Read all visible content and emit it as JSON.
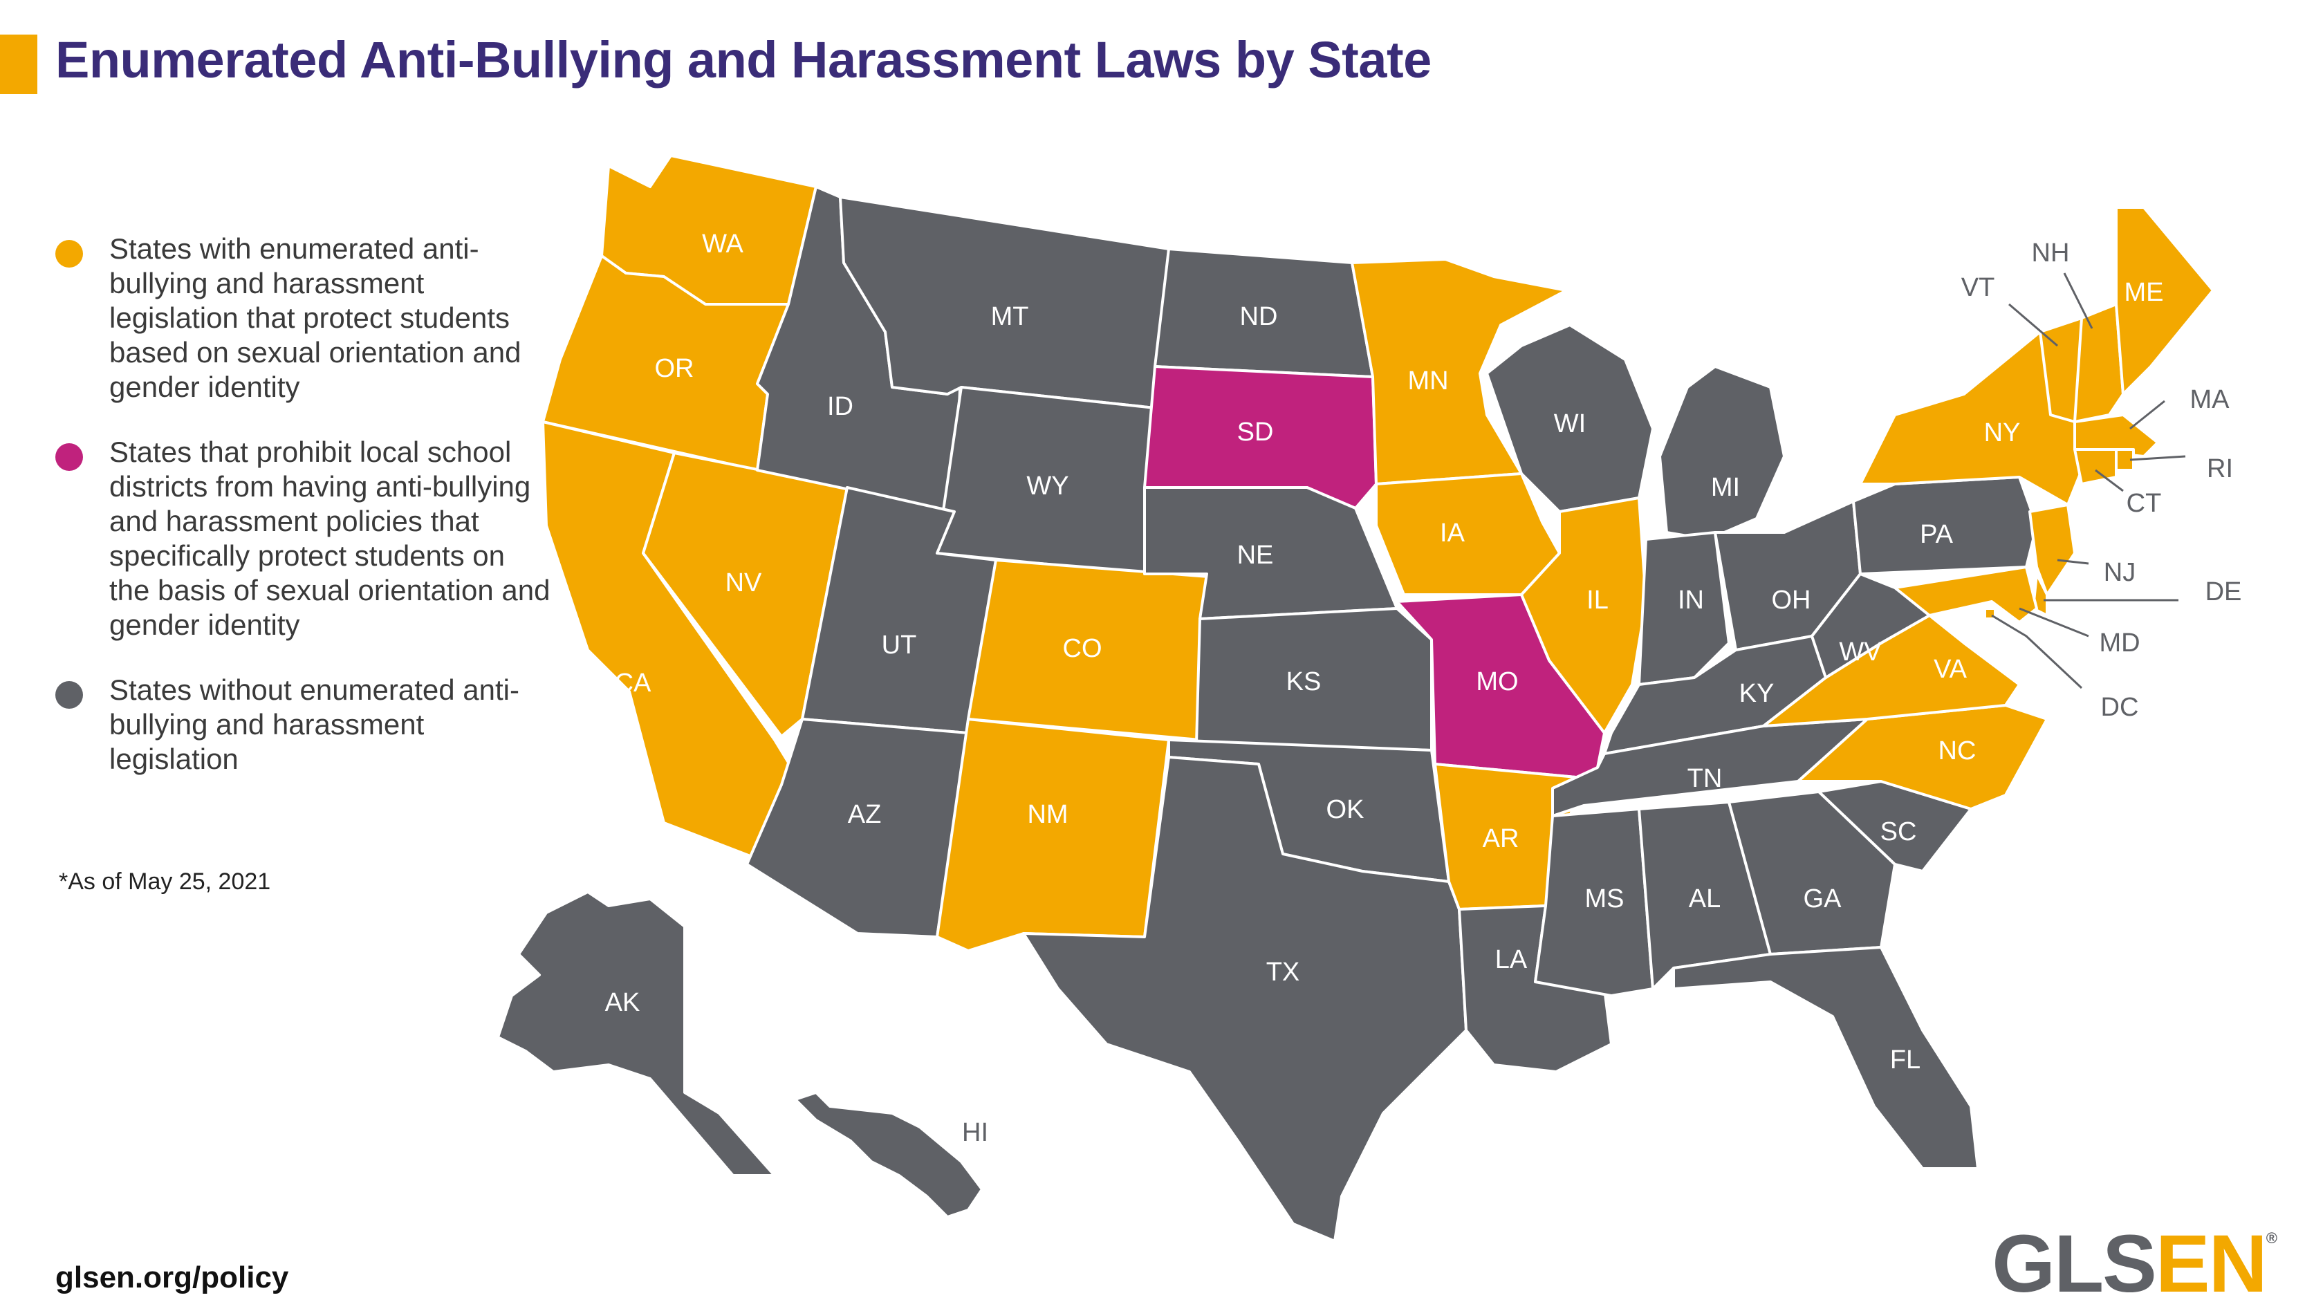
{
  "title": "Enumerated Anti-Bullying and Harassment Laws by State",
  "colors": {
    "enumerated": "#F3A800",
    "prohibit": "#C0227D",
    "without": "#5F6166",
    "title": "#3A2C78"
  },
  "legend": [
    {
      "category": "enumerated",
      "text": "States with enumerated anti-bullying and harassment legislation that protect students based on sexual orientation and gender identity"
    },
    {
      "category": "prohibit",
      "text": "States that prohibit local school districts from having anti-bullying and harassment policies that specifically protect students on the basis of sexual orientation and gender identity"
    },
    {
      "category": "without",
      "text": "States without enumerated anti-bullying and harassment legislation"
    }
  ],
  "footnote": "*As of May 25, 2021",
  "url": "glsen.org/policy",
  "logo": {
    "part1": "GLS",
    "part2": "EN",
    "reg": "®"
  },
  "states": {
    "WA": "enumerated",
    "OR": "enumerated",
    "CA": "enumerated",
    "NV": "enumerated",
    "ID": "without",
    "MT": "without",
    "WY": "without",
    "UT": "without",
    "AZ": "without",
    "CO": "enumerated",
    "NM": "enumerated",
    "ND": "without",
    "SD": "prohibit",
    "NE": "without",
    "KS": "without",
    "OK": "without",
    "TX": "without",
    "MN": "enumerated",
    "IA": "enumerated",
    "MO": "prohibit",
    "AR": "enumerated",
    "LA": "without",
    "WI": "without",
    "IL": "enumerated",
    "MI": "without",
    "IN": "without",
    "OH": "without",
    "KY": "without",
    "TN": "without",
    "MS": "without",
    "AL": "without",
    "GA": "without",
    "FL": "without",
    "SC": "without",
    "NC": "enumerated",
    "VA": "enumerated",
    "WV": "without",
    "PA": "without",
    "NY": "enumerated",
    "VT": "enumerated",
    "NH": "enumerated",
    "ME": "enumerated",
    "MA": "enumerated",
    "RI": "enumerated",
    "CT": "enumerated",
    "NJ": "enumerated",
    "DE": "enumerated",
    "MD": "enumerated",
    "DC": "enumerated",
    "AK": "without",
    "HI": "without"
  },
  "labels": {
    "WA": "WA",
    "OR": "OR",
    "CA": "CA",
    "NV": "NV",
    "ID": "ID",
    "MT": "MT",
    "WY": "WY",
    "UT": "UT",
    "AZ": "AZ",
    "CO": "CO",
    "NM": "NM",
    "ND": "ND",
    "SD": "SD",
    "NE": "NE",
    "KS": "KS",
    "OK": "OK",
    "TX": "TX",
    "MN": "MN",
    "IA": "IA",
    "MO": "MO",
    "AR": "AR",
    "LA": "LA",
    "WI": "WI",
    "IL": "IL",
    "MI": "MI",
    "IN": "IN",
    "OH": "OH",
    "KY": "KY",
    "TN": "TN",
    "MS": "MS",
    "AL": "AL",
    "GA": "GA",
    "FL": "FL",
    "SC": "SC",
    "NC": "NC",
    "VA": "VA",
    "WV": "WV",
    "PA": "PA",
    "NY": "NY",
    "ME": "ME",
    "AK": "AK",
    "VT": "VT",
    "NH": "NH",
    "MA": "MA",
    "RI": "RI",
    "CT": "CT",
    "NJ": "NJ",
    "DE": "DE",
    "MD": "MD",
    "DC": "DC",
    "HI": "HI"
  }
}
